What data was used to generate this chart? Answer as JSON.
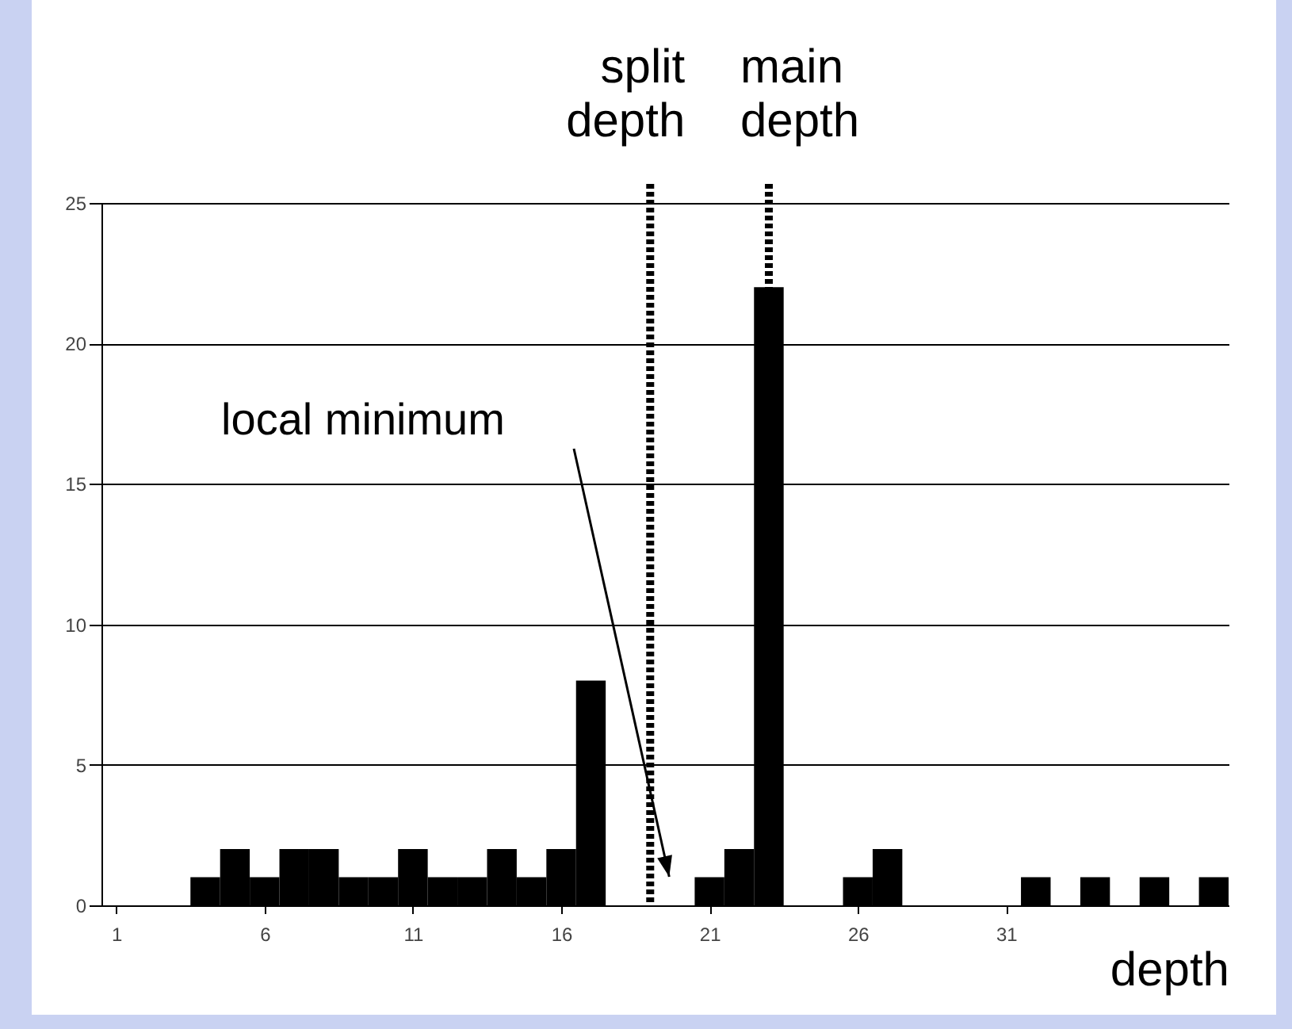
{
  "chart_data": {
    "type": "histogram",
    "xlabel": "depth",
    "bins": [
      0.5,
      1.5,
      2.5,
      3.5,
      4.5,
      5.5,
      6.5,
      7.5,
      8.5,
      9.5,
      10.5,
      11.5,
      12.5,
      13.5,
      14.5,
      15.5,
      16.5,
      17.5,
      18.5,
      19.5,
      20.5,
      21.5,
      22.5,
      23.5,
      24.5,
      25.5,
      26.5,
      27.5,
      28.5,
      29.5,
      30.5,
      31.5,
      32.5,
      33.5,
      34.5,
      35.5,
      36.5,
      37.5,
      38.5
    ],
    "values": [
      0,
      0,
      0,
      1,
      2,
      1,
      2,
      2,
      1,
      1,
      2,
      1,
      1,
      2,
      1,
      2,
      8,
      0,
      0,
      0,
      1,
      2,
      22,
      0,
      0,
      1,
      2,
      0,
      0,
      0,
      0,
      1,
      0,
      1,
      0,
      1,
      0,
      1
    ],
    "color": "#000000",
    "xlim": [
      0.5,
      38.5
    ],
    "xticks": [
      1,
      6,
      11,
      16,
      21,
      26,
      31
    ],
    "ylim": [
      0,
      25
    ],
    "yticks": [
      0,
      5,
      10,
      15,
      20,
      25
    ],
    "grid": "y",
    "ref_lines": [
      {
        "axis": "x",
        "value": 19,
        "label": "split depth",
        "color": "#000000",
        "line_style": "dotted"
      },
      {
        "axis": "x",
        "value": 23,
        "label": "main depth",
        "color": "#000000",
        "line_style": "dotted"
      }
    ],
    "annotations": [
      "local minimum"
    ]
  }
}
